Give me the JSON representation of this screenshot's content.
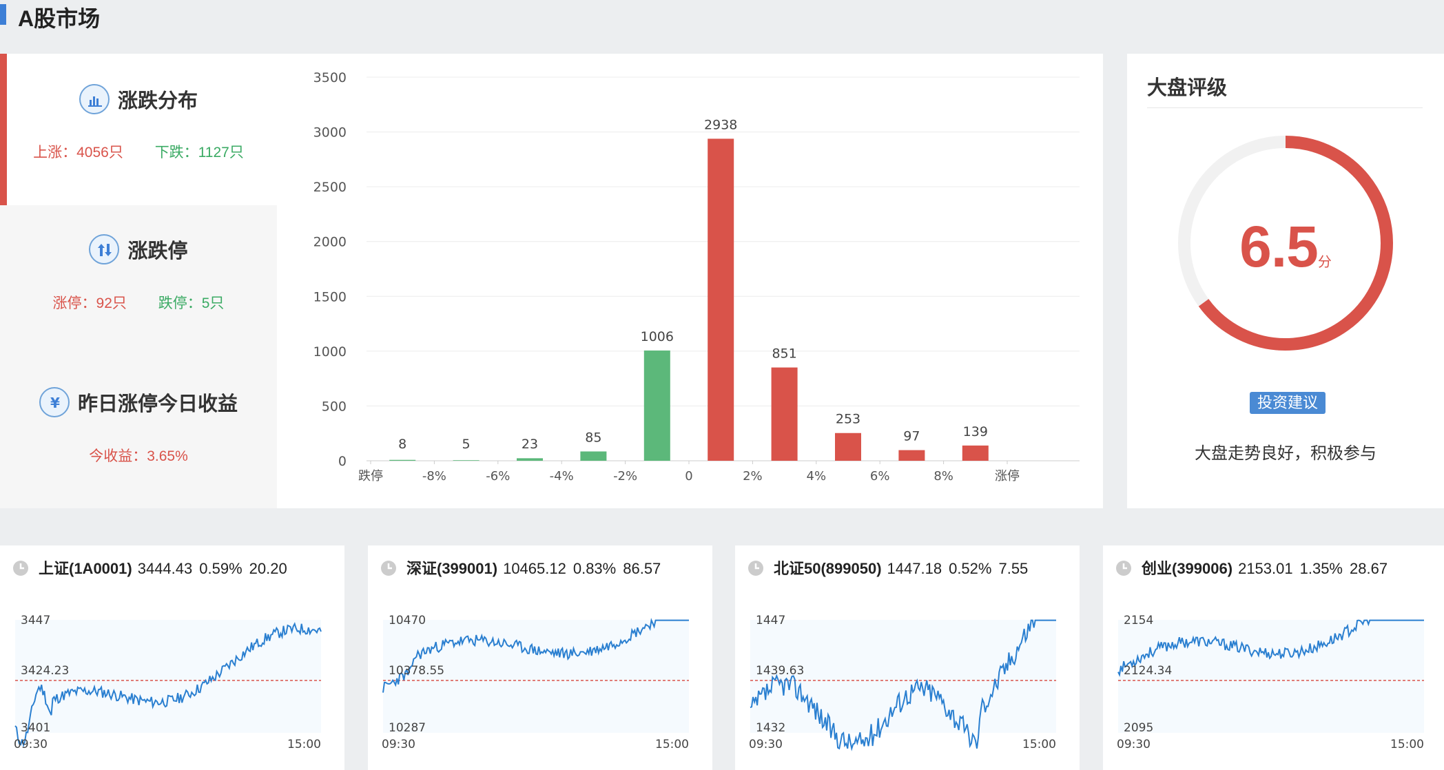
{
  "page_title": "A股市场",
  "distribution": {
    "sections": [
      {
        "title": "涨跌分布",
        "icon": "bar-chart-icon",
        "up_label": "上涨：4056只",
        "down_label": "下跌：1127只"
      },
      {
        "title": "涨跌停",
        "icon": "up-down-arrows-icon",
        "up_label": "涨停：92只",
        "down_label": "跌停：5只"
      },
      {
        "title": "昨日涨停今日收益",
        "icon": "yen-icon",
        "up_label": "今收益：3.65%"
      }
    ]
  },
  "chart_data": {
    "type": "bar",
    "categories": [
      "跌停",
      "-8%",
      "-6%",
      "-4%",
      "-2%",
      "0",
      "2%",
      "4%",
      "6%",
      "8%",
      "涨停"
    ],
    "bars": [
      {
        "value": 8,
        "color": "#5cb87a"
      },
      {
        "value": 5,
        "color": "#5cb87a"
      },
      {
        "value": 23,
        "color": "#5cb87a"
      },
      {
        "value": 85,
        "color": "#5cb87a"
      },
      {
        "value": 1006,
        "color": "#5cb87a"
      },
      {
        "value": 2938,
        "color": "#d9534a"
      },
      {
        "value": 851,
        "color": "#d9534a"
      },
      {
        "value": 253,
        "color": "#d9534a"
      },
      {
        "value": 97,
        "color": "#d9534a"
      },
      {
        "value": 139,
        "color": "#d9534a"
      }
    ],
    "yticks": [
      0,
      500,
      1000,
      1500,
      2000,
      2500,
      3000,
      3500
    ],
    "ylim": [
      0,
      3500
    ],
    "grid": true,
    "title": "",
    "xlabel": "",
    "ylabel": ""
  },
  "rating": {
    "title": "大盘评级",
    "score": "6.5",
    "unit": "分",
    "score_fraction": 0.65,
    "advice_label": "投资建议",
    "advice_text": "大盘走势良好，积极参与",
    "colors": {
      "accent": "#d9534a",
      "track": "#f1f1f1"
    }
  },
  "indices": [
    {
      "name": "上证(1A0001)",
      "price": "3444.43",
      "pct": "0.59%",
      "change": "20.20",
      "y_high": "3447",
      "y_mid": "3424.23",
      "y_low": "3401",
      "t_start": "09:30",
      "t_end": "15:00"
    },
    {
      "name": "深证(399001)",
      "price": "10465.12",
      "pct": "0.83%",
      "change": "86.57",
      "y_high": "10470",
      "y_mid": "10378.55",
      "y_low": "10287",
      "t_start": "09:30",
      "t_end": "15:00"
    },
    {
      "name": "北证50(899050)",
      "price": "1447.18",
      "pct": "0.52%",
      "change": "7.55",
      "y_high": "1447",
      "y_mid": "1439.63",
      "y_low": "1432",
      "t_start": "09:30",
      "t_end": "15:00"
    },
    {
      "name": "创业(399006)",
      "price": "2153.01",
      "pct": "1.35%",
      "change": "28.67",
      "y_high": "2154",
      "y_mid": "2124.34",
      "y_low": "2095",
      "t_start": "09:30",
      "t_end": "15:00"
    }
  ],
  "colors": {
    "up": "#d9534a",
    "down": "#3aaa63",
    "line": "#2a7fd0",
    "brand": "#3d7fd6"
  }
}
